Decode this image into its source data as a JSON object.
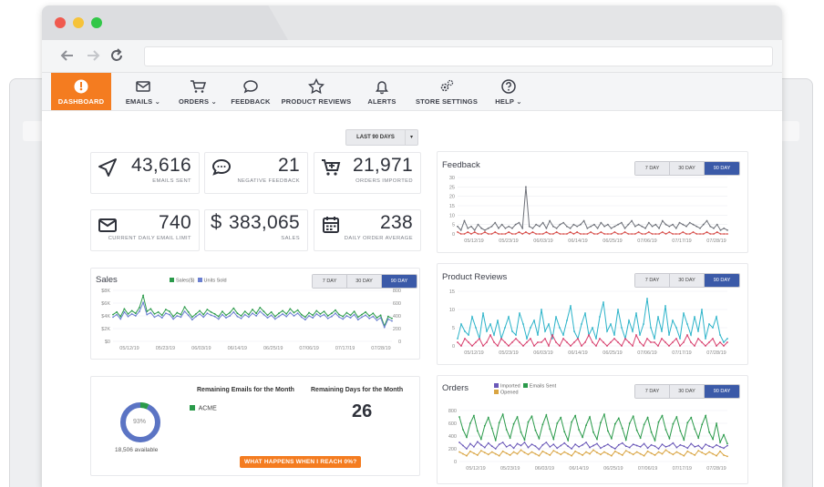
{
  "nav": {
    "items": [
      {
        "label": "DASHBOARD",
        "icon": "dashboard-gauge-icon",
        "active": true
      },
      {
        "label": "EMAILS ⌄",
        "icon": "envelope-icon"
      },
      {
        "label": "ORDERS ⌄",
        "icon": "cart-icon"
      },
      {
        "label": "FEEDBACK",
        "icon": "speech-bubble-icon"
      },
      {
        "label": "PRODUCT REVIEWS",
        "icon": "star-icon"
      },
      {
        "label": "ALERTS",
        "icon": "bell-icon"
      },
      {
        "label": "STORE SETTINGS",
        "icon": "gears-icon"
      },
      {
        "label": "HELP ⌄",
        "icon": "question-circle-icon"
      }
    ]
  },
  "range": {
    "label": "LAST 90 DAYS",
    "caret": "▾"
  },
  "stats": {
    "emails_sent": {
      "value": "43,616",
      "label": "EMAILS SENT"
    },
    "negative_feedback": {
      "value": "21",
      "label": "NEGATIVE FEEDBACK"
    },
    "orders_imported": {
      "value": "21,971",
      "label": "ORDERS IMPORTED"
    },
    "daily_limit": {
      "value": "740",
      "label": "CURRENT DAILY EMAIL LIMIT"
    },
    "sales": {
      "value": "383,065",
      "label": "SALES",
      "currency": "$"
    },
    "daily_avg": {
      "value": "238",
      "label": "DAILY ORDER AVERAGE"
    }
  },
  "segments": {
    "d7": "7 DAY",
    "d30": "30 DAY",
    "d90": "90 DAY"
  },
  "feedback": {
    "title": "Feedback"
  },
  "sales_chart": {
    "title": "Sales",
    "legend_sales": "Sales($)",
    "legend_units": "Units Sold"
  },
  "reviews": {
    "title": "Product Reviews"
  },
  "orders": {
    "title": "Orders",
    "legend_imported": "Imported",
    "legend_sent": "Emails Sent",
    "legend_opened": "Opened"
  },
  "remaining": {
    "emails_title": "Remaining Emails for the Month",
    "days_title": "Remaining Days for the Month",
    "days_value": "26",
    "acme": "ACME",
    "pct": "93%",
    "available": "18,506 available",
    "cta": "WHAT HAPPENS WHEN I REACH 0%?"
  },
  "colors": {
    "orange": "#f47c20",
    "blue": "#3b5aa8",
    "green": "#2a9a4a",
    "gray_line": "#6d7078",
    "red_line": "#d9534f",
    "cyan_line": "#2bb3c9",
    "pink_line": "#d8406e",
    "purple_line": "#6a58b8",
    "tan_line": "#d9a441"
  },
  "chart_data": [
    {
      "type": "line",
      "title": "Feedback",
      "x_ticks": [
        "05/12/19",
        "05/23/19",
        "06/03/19",
        "06/14/19",
        "06/25/19",
        "07/06/19",
        "07/17/19",
        "07/28/19"
      ],
      "y_ticks": [
        0,
        5,
        10,
        15,
        20,
        25,
        30
      ],
      "ylim": [
        0,
        30
      ],
      "series": [
        {
          "values": [
            4,
            2,
            7,
            3,
            4,
            2,
            5,
            3,
            2,
            3,
            4,
            6,
            3,
            5,
            3,
            4,
            3,
            5,
            6,
            3,
            25,
            4,
            3,
            5,
            4,
            6,
            3,
            7,
            4,
            3,
            5,
            6,
            4,
            3,
            5,
            4,
            5,
            7,
            3,
            4,
            5,
            3,
            6,
            4,
            5,
            3,
            4,
            5,
            6,
            3,
            5,
            7,
            4,
            5,
            4,
            3,
            6,
            4,
            5,
            3,
            7,
            5,
            4,
            5,
            3,
            6,
            5,
            4,
            6,
            5,
            4,
            3,
            5,
            7,
            4,
            3,
            5,
            2,
            3,
            2
          ]
        },
        {
          "values": [
            1,
            0,
            0,
            1,
            0,
            1,
            0,
            0,
            1,
            0,
            0,
            1,
            0,
            0,
            0,
            1,
            0,
            0,
            1,
            0,
            1,
            0,
            1,
            0,
            0,
            0,
            1,
            0,
            0,
            1,
            0,
            0,
            0,
            1,
            0,
            1,
            0,
            0,
            0,
            1,
            0,
            0,
            1,
            0,
            0,
            0,
            1,
            0,
            0,
            1,
            0,
            0,
            0,
            1,
            0,
            0,
            1,
            0,
            0,
            0,
            1,
            0,
            1,
            0,
            0,
            0,
            1,
            0,
            0,
            1,
            0,
            0,
            0,
            1,
            0,
            0,
            1,
            0,
            0,
            0
          ]
        }
      ]
    },
    {
      "type": "line",
      "title": "Sales",
      "x_ticks": [
        "05/12/19",
        "05/23/19",
        "06/03/19",
        "06/14/19",
        "06/25/19",
        "07/06/19",
        "07/17/19",
        "07/28/19"
      ],
      "y_left_ticks": [
        "$0",
        "$2K",
        "$4K",
        "$6K",
        "$8K"
      ],
      "y_right_ticks": [
        "0",
        "200",
        "400",
        "600",
        "800"
      ],
      "series": [
        {
          "name": "Sales($)",
          "values": [
            4200,
            4600,
            3900,
            5100,
            4300,
            4800,
            4400,
            5300,
            7200,
            4700,
            5100,
            4300,
            4600,
            4100,
            5000,
            4700,
            3900,
            4500,
            4200,
            5400,
            4600,
            3800,
            4300,
            4800,
            4200,
            5000,
            4600,
            4300,
            3900,
            4700,
            4100,
            4500,
            5200,
            4400,
            4000,
            4700,
            4200,
            5000,
            4400,
            5300,
            4700,
            4100,
            4600,
            3900,
            4400,
            4800,
            4300,
            5100,
            4500,
            4900,
            4200,
            3800,
            4500,
            4100,
            4800,
            4300,
            4700,
            4000,
            4400,
            4900,
            4200,
            3900,
            4500,
            4100,
            4700,
            3800,
            4200,
            4600,
            4000,
            4400,
            3700,
            4100,
            2400,
            3900,
            3600
          ]
        },
        {
          "name": "Units Sold",
          "values": [
            380,
            420,
            350,
            460,
            390,
            430,
            400,
            470,
            610,
            420,
            450,
            380,
            410,
            370,
            440,
            420,
            350,
            400,
            380,
            470,
            410,
            340,
            390,
            430,
            380,
            440,
            410,
            390,
            350,
            420,
            370,
            400,
            460,
            390,
            360,
            420,
            380,
            440,
            400,
            470,
            420,
            370,
            410,
            350,
            390,
            430,
            390,
            450,
            400,
            440,
            380,
            340,
            400,
            370,
            430,
            390,
            420,
            360,
            390,
            440,
            380,
            350,
            400,
            370,
            420,
            340,
            380,
            410,
            360,
            390,
            330,
            370,
            220,
            350,
            320
          ]
        }
      ]
    },
    {
      "type": "line",
      "title": "Product Reviews",
      "x_ticks": [
        "05/12/19",
        "05/23/19",
        "06/03/19",
        "06/14/19",
        "06/25/19",
        "07/06/19",
        "07/17/19",
        "07/28/19"
      ],
      "y_ticks": [
        0,
        5,
        10,
        15
      ],
      "ylim": [
        0,
        15
      ],
      "series": [
        {
          "values": [
            2,
            6,
            4,
            3,
            8,
            5,
            2,
            9,
            4,
            6,
            3,
            7,
            2,
            5,
            8,
            4,
            3,
            9,
            6,
            2,
            5,
            7,
            3,
            10,
            4,
            6,
            2,
            8,
            5,
            3,
            7,
            11,
            4,
            2,
            6,
            9,
            3,
            5,
            2,
            8,
            12,
            4,
            6,
            3,
            10,
            5,
            2,
            7,
            4,
            9,
            3,
            6,
            13,
            5,
            2,
            8,
            4,
            11,
            3,
            7,
            5,
            2,
            9,
            6,
            3,
            8,
            4,
            10,
            2,
            6,
            5,
            8,
            3,
            1,
            2
          ]
        },
        {
          "values": [
            1,
            0,
            2,
            1,
            0,
            1,
            2,
            0,
            1,
            3,
            1,
            0,
            2,
            1,
            0,
            1,
            2,
            1,
            0,
            1,
            2,
            0,
            1,
            1,
            2,
            0,
            3,
            1,
            0,
            2,
            1,
            0,
            1,
            2,
            0,
            1,
            3,
            1,
            0,
            2,
            1,
            0,
            1,
            2,
            1,
            0,
            2,
            1,
            0,
            3,
            1,
            0,
            2,
            1,
            1,
            0,
            2,
            1,
            0,
            1,
            2,
            0,
            1,
            3,
            1,
            0,
            2,
            1,
            0,
            1,
            2,
            0,
            1,
            0,
            1
          ]
        }
      ]
    },
    {
      "type": "line",
      "title": "Orders",
      "x_ticks": [
        "05/12/19",
        "05/23/19",
        "06/03/19",
        "06/14/19",
        "06/25/19",
        "07/06/19",
        "07/17/19",
        "07/28/19"
      ],
      "y_ticks": [
        "0",
        "200",
        "400",
        "600",
        "800"
      ],
      "series": [
        {
          "name": "Imported",
          "values": [
            300,
            250,
            200,
            280,
            230,
            310,
            260,
            220,
            290,
            240,
            200,
            270,
            300,
            230,
            260,
            210,
            280,
            250,
            300,
            220,
            270,
            240,
            190,
            260,
            300,
            230,
            270,
            210,
            250,
            290,
            240,
            200,
            270,
            230,
            260,
            300,
            220,
            250,
            280,
            210,
            240,
            270,
            230,
            200,
            260,
            290,
            240,
            220,
            270,
            250,
            230,
            280,
            210,
            260,
            240,
            200,
            270,
            230,
            250,
            290,
            220,
            260,
            240,
            210,
            280,
            230,
            250,
            200,
            270,
            240,
            220,
            260,
            230,
            210,
            250
          ]
        },
        {
          "name": "Emails Sent",
          "values": [
            700,
            500,
            380,
            600,
            720,
            480,
            350,
            560,
            690,
            520,
            330,
            610,
            740,
            500,
            370,
            590,
            700,
            460,
            340,
            620,
            710,
            490,
            360,
            580,
            730,
            510,
            350,
            600,
            690,
            470,
            330,
            620,
            720,
            500,
            380,
            570,
            700,
            460,
            350,
            610,
            740,
            480,
            360,
            590,
            680,
            520,
            340,
            600,
            710,
            490,
            370,
            580,
            690,
            460,
            330,
            620,
            720,
            500,
            360,
            590,
            700,
            480,
            340,
            610,
            690,
            510,
            370,
            580,
            720,
            460,
            350,
            600,
            300,
            420,
            280
          ]
        },
        {
          "name": "Opened",
          "values": [
            150,
            120,
            90,
            160,
            130,
            100,
            170,
            140,
            110,
            150,
            120,
            90,
            160,
            130,
            100,
            150,
            120,
            180,
            140,
            110,
            150,
            120,
            90,
            160,
            130,
            100,
            170,
            140,
            110,
            150,
            120,
            90,
            160,
            130,
            100,
            150,
            120,
            180,
            140,
            110,
            150,
            120,
            90,
            160,
            130,
            100,
            170,
            140,
            110,
            150,
            120,
            90,
            160,
            130,
            100,
            150,
            120,
            180,
            140,
            110,
            150,
            120,
            90,
            160,
            130,
            100,
            170,
            140,
            110,
            150,
            120,
            90,
            160,
            100,
            80
          ]
        }
      ]
    }
  ]
}
